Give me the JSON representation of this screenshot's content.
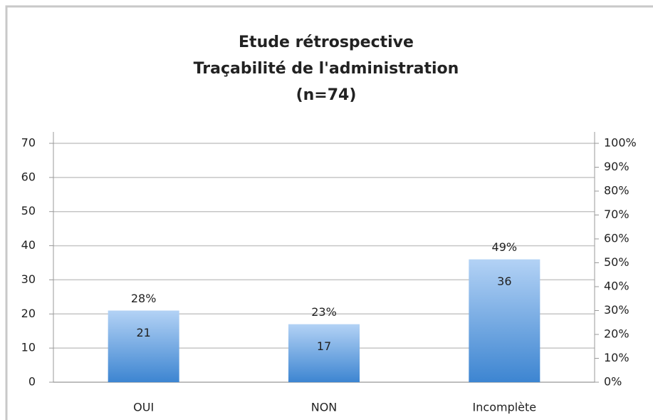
{
  "chart_data": {
    "type": "bar",
    "title": [
      "Etude rétrospective",
      "Traçabilité de l'administration",
      "(n=74)"
    ],
    "categories": [
      "OUI",
      "NON",
      "Incomplète"
    ],
    "series": [
      {
        "values": [
          21,
          17,
          36
        ],
        "color": "#4a8fd6"
      },
      {
        "values": [
          28,
          23,
          49
        ],
        "value_labels": [
          "28%",
          "23%",
          "49%"
        ],
        "axis": "y2"
      }
    ],
    "ylim": [
      0,
      70
    ],
    "yticks": [
      0,
      10,
      20,
      30,
      40,
      50,
      60,
      70
    ],
    "y2lim": [
      0,
      100
    ],
    "y2ticks": [
      {
        "value": 0,
        "label": "0%"
      },
      {
        "value": 10,
        "label": "10%"
      },
      {
        "value": 20,
        "label": "20%"
      },
      {
        "value": 30,
        "label": "30%"
      },
      {
        "value": 40,
        "label": "40%"
      },
      {
        "value": 50,
        "label": "50%"
      },
      {
        "value": 60,
        "label": "60%"
      },
      {
        "value": 70,
        "label": "70%"
      },
      {
        "value": 80,
        "label": "80%"
      },
      {
        "value": 90,
        "label": "90%"
      },
      {
        "value": 100,
        "label": "100%"
      }
    ],
    "grid": true
  }
}
